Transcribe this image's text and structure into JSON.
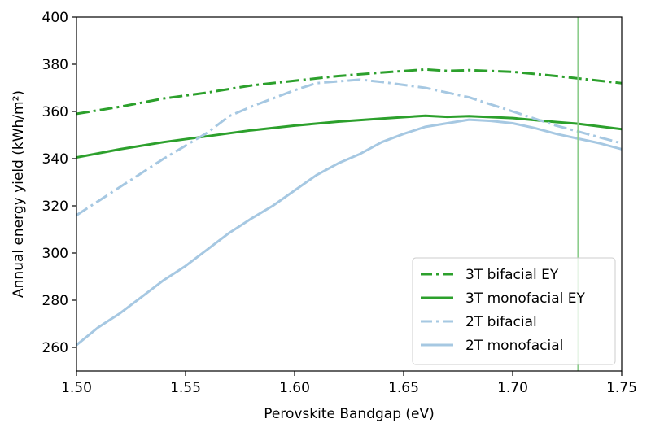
{
  "chart_data": {
    "type": "line",
    "xlabel": "Perovskite Bandgap (eV)",
    "ylabel": "Annual energy yield (kWh/m²)",
    "xlim": [
      1.5,
      1.75
    ],
    "ylim": [
      250,
      400
    ],
    "xticks": [
      "1.50",
      "1.55",
      "1.60",
      "1.65",
      "1.70",
      "1.75"
    ],
    "yticks": [
      "260",
      "280",
      "300",
      "320",
      "340",
      "360",
      "380",
      "400"
    ],
    "grid": false,
    "legend_position": "lower-right",
    "vertical_line": {
      "x": 1.73,
      "color": "#8ccd8c"
    },
    "series": [
      {
        "name": "3T bifacial EY",
        "color": "#2ca02c",
        "style": "dashdot",
        "x": [
          1.5,
          1.52,
          1.54,
          1.56,
          1.58,
          1.6,
          1.62,
          1.64,
          1.66,
          1.67,
          1.68,
          1.7,
          1.72,
          1.75
        ],
        "y": [
          359,
          362,
          365.5,
          368,
          371,
          373,
          375,
          376.5,
          377.8,
          377.2,
          377.5,
          376.8,
          375,
          372
        ]
      },
      {
        "name": "3T monofacial EY",
        "color": "#2ca02c",
        "style": "solid",
        "x": [
          1.5,
          1.52,
          1.54,
          1.56,
          1.58,
          1.6,
          1.62,
          1.64,
          1.66,
          1.67,
          1.68,
          1.7,
          1.72,
          1.73,
          1.75
        ],
        "y": [
          340.5,
          344,
          347,
          349.5,
          352,
          354,
          355.7,
          357,
          358.2,
          357.7,
          358,
          357.2,
          355.5,
          354.8,
          352.5
        ]
      },
      {
        "name": "2T bifacial",
        "color": "#a6c8e2",
        "style": "dashdot",
        "x": [
          1.5,
          1.52,
          1.54,
          1.56,
          1.57,
          1.58,
          1.6,
          1.61,
          1.63,
          1.64,
          1.66,
          1.68,
          1.7,
          1.72,
          1.75
        ],
        "y": [
          316,
          328,
          340,
          351,
          358,
          362,
          369,
          372,
          373.5,
          372.5,
          370,
          366,
          360,
          354,
          346.5
        ]
      },
      {
        "name": "2T monofacial",
        "color": "#a6c8e2",
        "style": "solid",
        "x": [
          1.5,
          1.51,
          1.52,
          1.53,
          1.54,
          1.55,
          1.56,
          1.57,
          1.58,
          1.59,
          1.6,
          1.61,
          1.62,
          1.63,
          1.64,
          1.65,
          1.66,
          1.67,
          1.68,
          1.69,
          1.7,
          1.71,
          1.72,
          1.73,
          1.74,
          1.75
        ],
        "y": [
          261,
          268.5,
          274.5,
          281.5,
          288.5,
          294.5,
          301.5,
          308.5,
          314.5,
          320,
          326.5,
          333,
          338,
          342,
          347,
          350.5,
          353.5,
          355,
          356.5,
          356,
          355,
          353,
          350.5,
          348.5,
          346.5,
          344
        ]
      }
    ]
  }
}
